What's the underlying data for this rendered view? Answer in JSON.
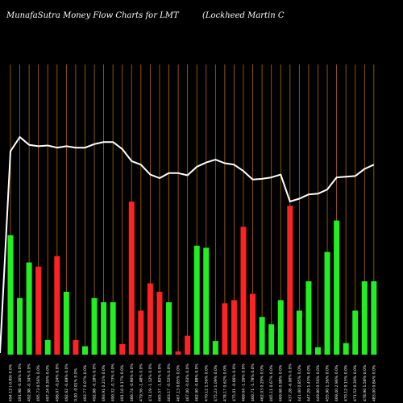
{
  "header": {
    "title": "MunafaSutra  Money Flow  Charts for LMT",
    "subtitle": "(Lockheed Martin  C"
  },
  "colors": {
    "background": "#000000",
    "up_bar": "#22ee22",
    "down_bar": "#ff2222",
    "gridline": "#b36a00",
    "line": "#ffffff",
    "text": "#ffffff"
  },
  "chart_data": {
    "type": "bar",
    "grid": "vertical",
    "ylim": [
      0,
      100
    ],
    "categories": [
      "494.12 (-0.89) 0.0%",
      "491.98 -0.36% 0.0%",
      "492.98 -0.34% 0.0%",
      "495.73 0.56% 0.0%",
      "497.24 0.30% 0.0%",
      "496.07 -0.24% 0.0%",
      "492.62 -0.69% 0.0%",
      "0.00 -0.01% 0.0%",
      "493.77 0.07% 0.0%",
      "492.88 -0.18% 0.0%",
      "493.91 0.21% 0.0%",
      "490.32 -0.73% 0.0%",
      "491.16 0.17% 0.0%",
      "486.74 -0.90% 0.0%",
      "479.56 -1.48% 0.0%",
      "474.19 -1.12% 0.0%",
      "465.57 -1.82% 0.0%",
      "463.17 -0.52% 0.0%",
      "467.13 0.85% 0.0%",
      "467.00 -0.03% 0.0%",
      "462.90 -0.88% 0.0%",
      "470.12 1.56% 0.0%",
      "475.23 1.09% 0.0%",
      "478.17 0.62% 0.0%",
      "475.01 -0.66% 0.0%",
      "469.04 -1.26% 0.0%",
      "460.71 -1.78% 0.0%",
      "462.03 0.29% 0.0%",
      "465.11 0.67% 0.0%",
      "469.68 0.98% 0.0%",
      "437.28 -6.90% 0.0%",
      "441.00 0.85% 0.0%",
      "447.29 1.43% 0.0%",
      "449.80 0.56% 0.0%",
      "455.90 1.36% 0.0%",
      "469.40 2.96% 0.0%",
      "470.12 0.15% 0.0%",
      "471.52 0.30% 0.0%",
      "478.96 1.58% 0.0%",
      "483.00 0.84% 0.0%"
    ],
    "series": [
      {
        "values": [
          57,
          27,
          44,
          42,
          7,
          47,
          30,
          7,
          4,
          27,
          25,
          25,
          5,
          73,
          21,
          34,
          30,
          25,
          1.5,
          9,
          52,
          51,
          6.5,
          24.5,
          26,
          61,
          29,
          18,
          14.5,
          26,
          71,
          21,
          35,
          3.5,
          49,
          64,
          5.5,
          21,
          35,
          35
        ],
        "colors": [
          "up",
          "up",
          "up",
          "down",
          "up",
          "down",
          "up",
          "down",
          "up",
          "up",
          "up",
          "up",
          "down",
          "down",
          "down",
          "down",
          "down",
          "up",
          "down",
          "down",
          "up",
          "up",
          "up",
          "down",
          "down",
          "down",
          "down",
          "up",
          "up",
          "up",
          "down",
          "up",
          "up",
          "up",
          "up",
          "up",
          "up",
          "up",
          "up",
          "up"
        ]
      },
      {
        "values": [
          492,
          512,
          501,
          499,
          500,
          497,
          499,
          497,
          497,
          502,
          505,
          505,
          495,
          478,
          473,
          459,
          454,
          461,
          461,
          458,
          470,
          476,
          480,
          475,
          473,
          464,
          452,
          453,
          455,
          459,
          421,
          425,
          431,
          432,
          438,
          455,
          456,
          457,
          467,
          473
        ]
      }
    ]
  }
}
